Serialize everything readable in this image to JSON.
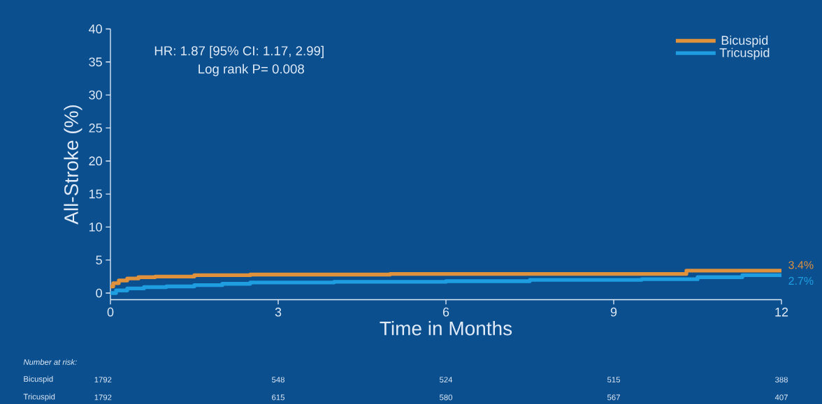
{
  "chart_data": {
    "type": "step",
    "xlabel": "Time in Months",
    "ylabel": "All-Stroke (%)",
    "xlim": [
      0,
      12
    ],
    "ylim": [
      -1,
      40
    ],
    "xticks": [
      0,
      3,
      6,
      9,
      12
    ],
    "yticks": [
      0,
      5,
      10,
      15,
      20,
      25,
      30,
      35,
      40
    ],
    "legend": "top right",
    "grid": false,
    "series": [
      {
        "name": "Bicuspid",
        "color": "#e0913c",
        "x": [
          0,
          0.05,
          0.15,
          0.3,
          0.5,
          0.8,
          1.5,
          2.5,
          5,
          10.3,
          12
        ],
        "values": [
          1.0,
          1.5,
          1.9,
          2.2,
          2.4,
          2.5,
          2.7,
          2.8,
          2.9,
          3.4,
          3.4
        ]
      },
      {
        "name": "Tricuspid",
        "color": "#1e9ee0",
        "x": [
          0,
          0.1,
          0.3,
          0.6,
          1,
          1.5,
          2,
          2.5,
          4,
          6,
          7.5,
          9.5,
          10.5,
          11.3,
          12
        ],
        "values": [
          0,
          0.4,
          0.7,
          0.9,
          1.0,
          1.2,
          1.4,
          1.6,
          1.7,
          1.8,
          2.0,
          2.1,
          2.4,
          2.7,
          2.7
        ]
      }
    ],
    "annotations": [
      "HR: 1.87 [95% CI: 1.17, 2.99]",
      "Log rank P= 0.008",
      "Number at risk:",
      "Bicuspid",
      "1792",
      "548",
      "524",
      "515",
      "388",
      "Tricuspid",
      "1792",
      "615",
      "580",
      "567",
      "407",
      {
        "text": "3.4%",
        "x": 12,
        "y": 3.4
      },
      {
        "text": "2.7%",
        "x": 12,
        "y": 2.7
      }
    ]
  }
}
